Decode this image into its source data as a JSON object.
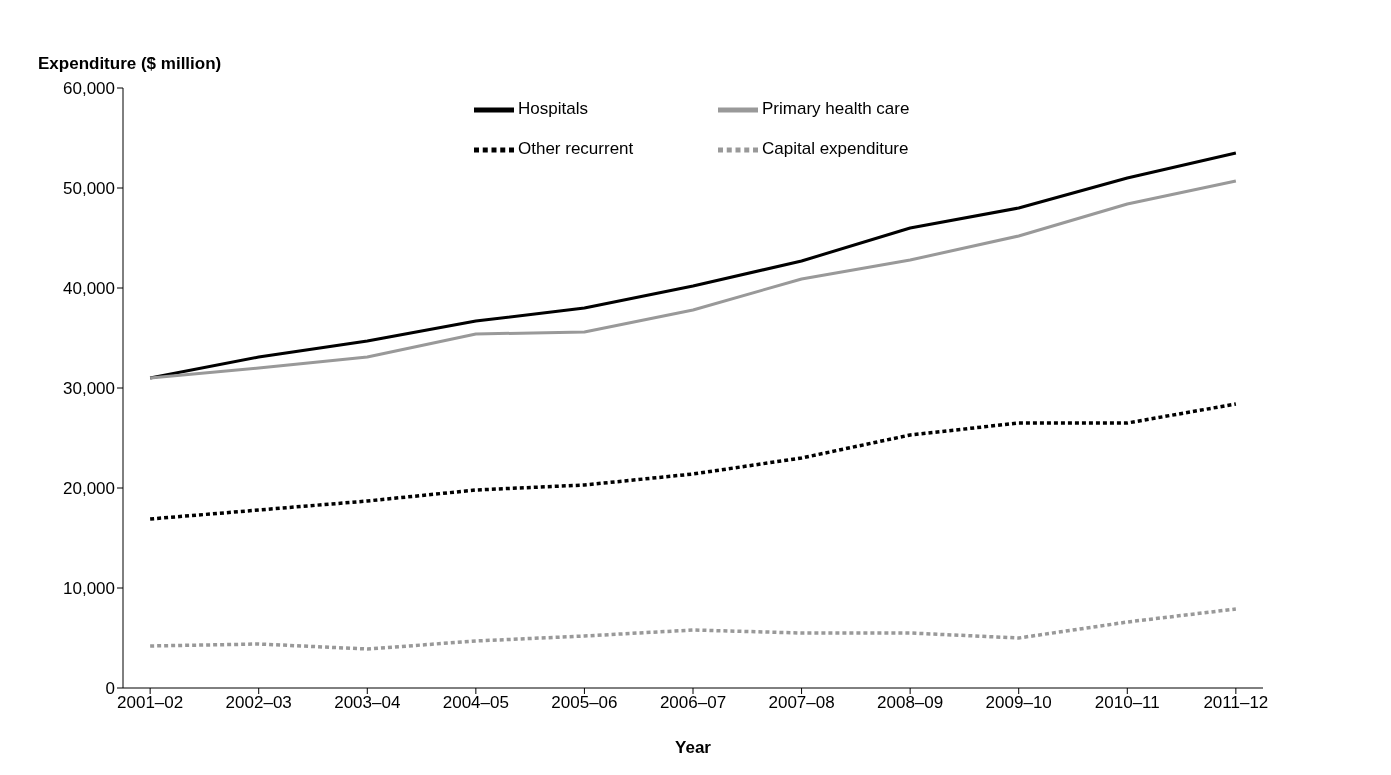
{
  "chart_data": {
    "type": "line",
    "ylabel": "Expenditure ($ million)",
    "xlabel": "Year",
    "categories": [
      "2001–02",
      "2002–03",
      "2003–04",
      "2004–05",
      "2005–06",
      "2006–07",
      "2007–08",
      "2008–09",
      "2009–10",
      "2010–11",
      "2011–12"
    ],
    "series": [
      {
        "name": "Hospitals",
        "color": "#000000",
        "line_style": "solid",
        "values": [
          31000,
          33100,
          34700,
          36700,
          38000,
          40200,
          42700,
          46000,
          48000,
          51000,
          53500
        ]
      },
      {
        "name": "Primary health care",
        "color": "#999999",
        "line_style": "solid",
        "values": [
          31000,
          32000,
          33100,
          35400,
          35600,
          37800,
          40900,
          42800,
          45200,
          48400,
          50700
        ]
      },
      {
        "name": "Other recurrent",
        "color": "#000000",
        "line_style": "dotted",
        "values": [
          16900,
          17800,
          18700,
          19800,
          20300,
          21400,
          23000,
          25300,
          26500,
          26500,
          28400
        ]
      },
      {
        "name": "Capital expenditure",
        "color": "#999999",
        "line_style": "dotted",
        "values": [
          4200,
          4400,
          3900,
          4700,
          5200,
          5800,
          5500,
          5500,
          5000,
          6600,
          7900
        ]
      }
    ],
    "ylim": [
      0,
      60000
    ],
    "yticks": [
      {
        "value": 0,
        "label": "0"
      },
      {
        "value": 10000,
        "label": "10,000"
      },
      {
        "value": 20000,
        "label": "20,000"
      },
      {
        "value": 30000,
        "label": "30,000"
      },
      {
        "value": 40000,
        "label": "40,000"
      },
      {
        "value": 50000,
        "label": "50,000"
      },
      {
        "value": 60000,
        "label": "60,000"
      }
    ],
    "grid": false,
    "legend": "top",
    "marker": "none"
  }
}
